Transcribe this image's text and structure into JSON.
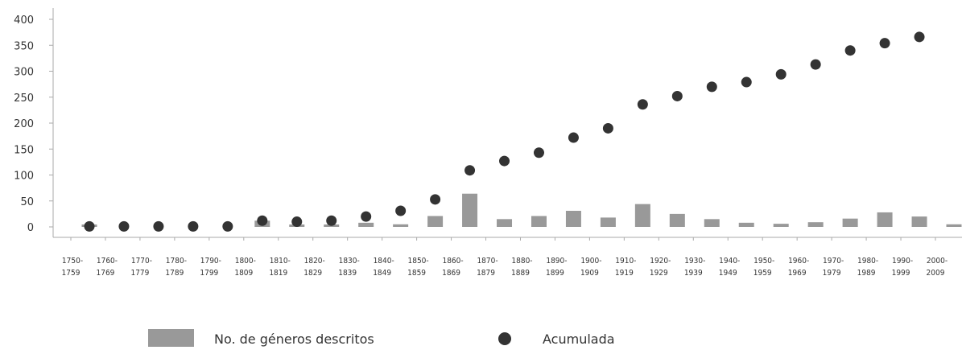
{
  "chart_data": {
    "type": "bar",
    "categories": [
      "1750-1759",
      "1760-1769",
      "1770-1779",
      "1780-1789",
      "1790-1799",
      "1800-1809",
      "1810-1819",
      "1820-1829",
      "1830-1839",
      "1840-1849",
      "1850-1859",
      "1860-1869",
      "1870-1879",
      "1880-1889",
      "1890-1899",
      "1900-1909",
      "1910-1919",
      "1920-1929",
      "1930-1939",
      "1940-1949",
      "1950-1959",
      "1960-1969",
      "1970-1979",
      "1980-1989",
      "1990-1999",
      "2000-2009"
    ],
    "category_lines": [
      [
        "1750-",
        "1759"
      ],
      [
        "1760-",
        "1769"
      ],
      [
        "1770-",
        "1779"
      ],
      [
        "1780-",
        "1789"
      ],
      [
        "1790-",
        "1799"
      ],
      [
        "1800-",
        "1809"
      ],
      [
        "1810-",
        "1819"
      ],
      [
        "1820-",
        "1829"
      ],
      [
        "1830-",
        "1839"
      ],
      [
        "1840-",
        "1849"
      ],
      [
        "1850-",
        "1859"
      ],
      [
        "1860-",
        "1869"
      ],
      [
        "1870-",
        "1879"
      ],
      [
        "1880-",
        "1889"
      ],
      [
        "1890-",
        "1899"
      ],
      [
        "1900-",
        "1909"
      ],
      [
        "1910-",
        "1919"
      ],
      [
        "1920-",
        "1929"
      ],
      [
        "1930-",
        "1939"
      ],
      [
        "1940-",
        "1949"
      ],
      [
        "1950-",
        "1959"
      ],
      [
        "1960-",
        "1969"
      ],
      [
        "1970-",
        "1979"
      ],
      [
        "1980-",
        "1989"
      ],
      [
        "1990-",
        "1999"
      ],
      [
        "2000-",
        "2009"
      ]
    ],
    "series": [
      {
        "name": "No. de géneros descritos",
        "kind": "bar",
        "color": "#999999",
        "values": [
          1,
          0,
          0,
          0,
          0,
          12,
          3,
          3,
          8,
          5,
          21,
          64,
          15,
          21,
          31,
          18,
          44,
          25,
          15,
          8,
          6,
          9,
          16,
          28,
          20,
          5
        ]
      },
      {
        "name": "Acumulada",
        "kind": "scatter",
        "color": "#333333",
        "values": [
          1,
          1,
          1,
          1,
          1,
          12,
          10,
          12,
          20,
          31,
          53,
          109,
          127,
          143,
          172,
          190,
          236,
          252,
          270,
          279,
          294,
          313,
          340,
          354,
          366,
          null
        ]
      }
    ],
    "yticks": [
      0,
      50,
      100,
      150,
      200,
      250,
      300,
      350,
      400
    ],
    "ylim": [
      -13,
      415
    ],
    "grid": false,
    "legend_position": "bottom"
  },
  "legend": {
    "bar_label": "No. de géneros descritos",
    "dot_label": "Acumulada"
  }
}
